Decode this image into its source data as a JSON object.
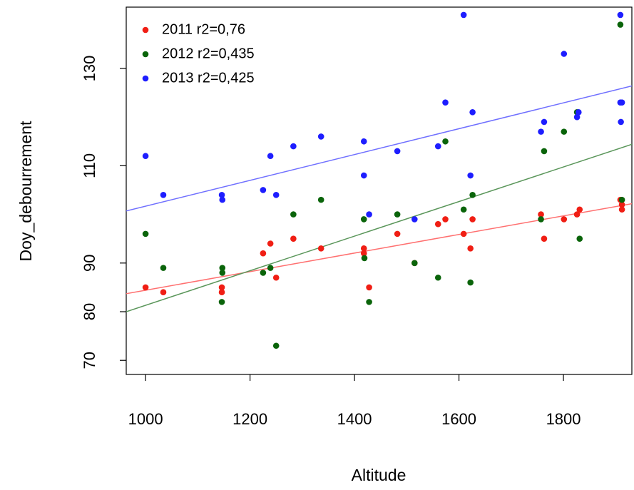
{
  "chart_data": {
    "type": "scatter",
    "x_label": "Altitude",
    "y_label": "Doy_debourrement",
    "xlim": [
      963,
      1931
    ],
    "ylim": [
      67.1,
      142.6
    ],
    "xticks": [
      1000,
      1200,
      1400,
      1600,
      1800
    ],
    "yticks": [
      70,
      80,
      90,
      110,
      130
    ],
    "legend": "top-left",
    "series": [
      {
        "name": "2011 r2=0,76",
        "color": "#f01e14",
        "fit_color": "#ff7070",
        "x": [
          1000,
          1034,
          1146,
          1146,
          1225,
          1239,
          1250,
          1283,
          1336,
          1418,
          1418,
          1428,
          1482,
          1515,
          1560,
          1574,
          1609,
          1622,
          1626,
          1757,
          1763,
          1801,
          1826,
          1831,
          1909,
          1912,
          1912
        ],
        "values": [
          85,
          84,
          85,
          84,
          92,
          94,
          87,
          95,
          93,
          93,
          92,
          85,
          96,
          90,
          98,
          99,
          96,
          93,
          99,
          100,
          95,
          99,
          100,
          101,
          103,
          102,
          101
        ],
        "fit_x": [
          963,
          1931
        ],
        "fit_y": [
          83.7,
          102.2
        ]
      },
      {
        "name": "2012 r2=0,435",
        "color": "#0a640a",
        "fit_color": "#5a965a",
        "x": [
          1000,
          1034,
          1146,
          1147,
          1147,
          1225,
          1239,
          1250,
          1283,
          1336,
          1418,
          1419,
          1428,
          1482,
          1515,
          1560,
          1574,
          1609,
          1622,
          1626,
          1757,
          1763,
          1801,
          1826,
          1831,
          1909,
          1912
        ],
        "values": [
          96,
          89,
          82,
          89,
          88,
          88,
          89,
          73,
          100,
          103,
          99,
          91,
          82,
          100,
          90,
          87,
          115,
          101,
          86,
          104,
          99,
          113,
          117,
          121,
          95,
          139,
          103
        ],
        "fit_x": [
          963,
          1931
        ],
        "fit_y": [
          80.0,
          114.4
        ]
      },
      {
        "name": "2013 r2=0,425",
        "color": "#1e1eff",
        "fit_color": "#7070ff",
        "x": [
          1000,
          1034,
          1146,
          1147,
          1225,
          1239,
          1250,
          1283,
          1336,
          1418,
          1418,
          1428,
          1482,
          1515,
          1560,
          1574,
          1609,
          1622,
          1626,
          1757,
          1763,
          1801,
          1826,
          1829,
          1909,
          1909,
          1910,
          1912
        ],
        "values": [
          112,
          104,
          104,
          103,
          105,
          112,
          104,
          114,
          116,
          115,
          108,
          100,
          113,
          99,
          114,
          123,
          141,
          108,
          121,
          117,
          119,
          133,
          120,
          121,
          141,
          123,
          119,
          123
        ],
        "fit_x": [
          963,
          1931
        ],
        "fit_y": [
          100.7,
          126.4
        ]
      }
    ]
  }
}
